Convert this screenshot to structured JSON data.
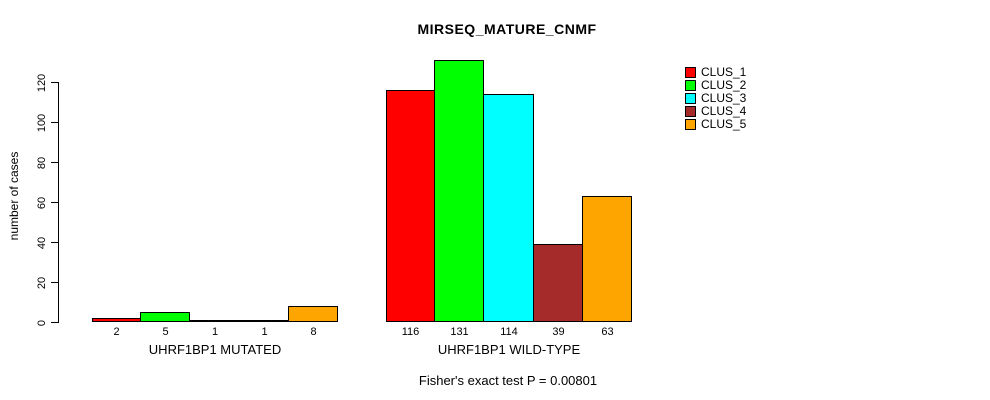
{
  "chart_data": {
    "type": "bar",
    "title": "MIRSEQ_MATURE_CNMF",
    "ylabel": "number of cases",
    "xlabel": "",
    "categories": [
      "UHRF1BP1 MUTATED",
      "UHRF1BP1 WILD-TYPE"
    ],
    "series": [
      {
        "name": "CLUS_1",
        "color": "#FF0000",
        "values": [
          2,
          116
        ]
      },
      {
        "name": "CLUS_2",
        "color": "#00FF00",
        "values": [
          5,
          131
        ]
      },
      {
        "name": "CLUS_3",
        "color": "#00FFFF",
        "values": [
          1,
          114
        ]
      },
      {
        "name": "CLUS_4",
        "color": "#A52A2A",
        "values": [
          1,
          39
        ]
      },
      {
        "name": "CLUS_5",
        "color": "#FFA500",
        "values": [
          8,
          63
        ]
      }
    ],
    "yticks": [
      0,
      20,
      40,
      60,
      80,
      100,
      120
    ],
    "ylim": [
      0,
      131
    ],
    "grid": false,
    "bar_value_labels": true,
    "legend_position": "right",
    "legend_items": [
      "CLUS_1",
      "CLUS_2",
      "CLUS_3",
      "CLUS_4",
      "CLUS_5"
    ],
    "annotation": "Fisher's exact test P = 0.00801"
  }
}
